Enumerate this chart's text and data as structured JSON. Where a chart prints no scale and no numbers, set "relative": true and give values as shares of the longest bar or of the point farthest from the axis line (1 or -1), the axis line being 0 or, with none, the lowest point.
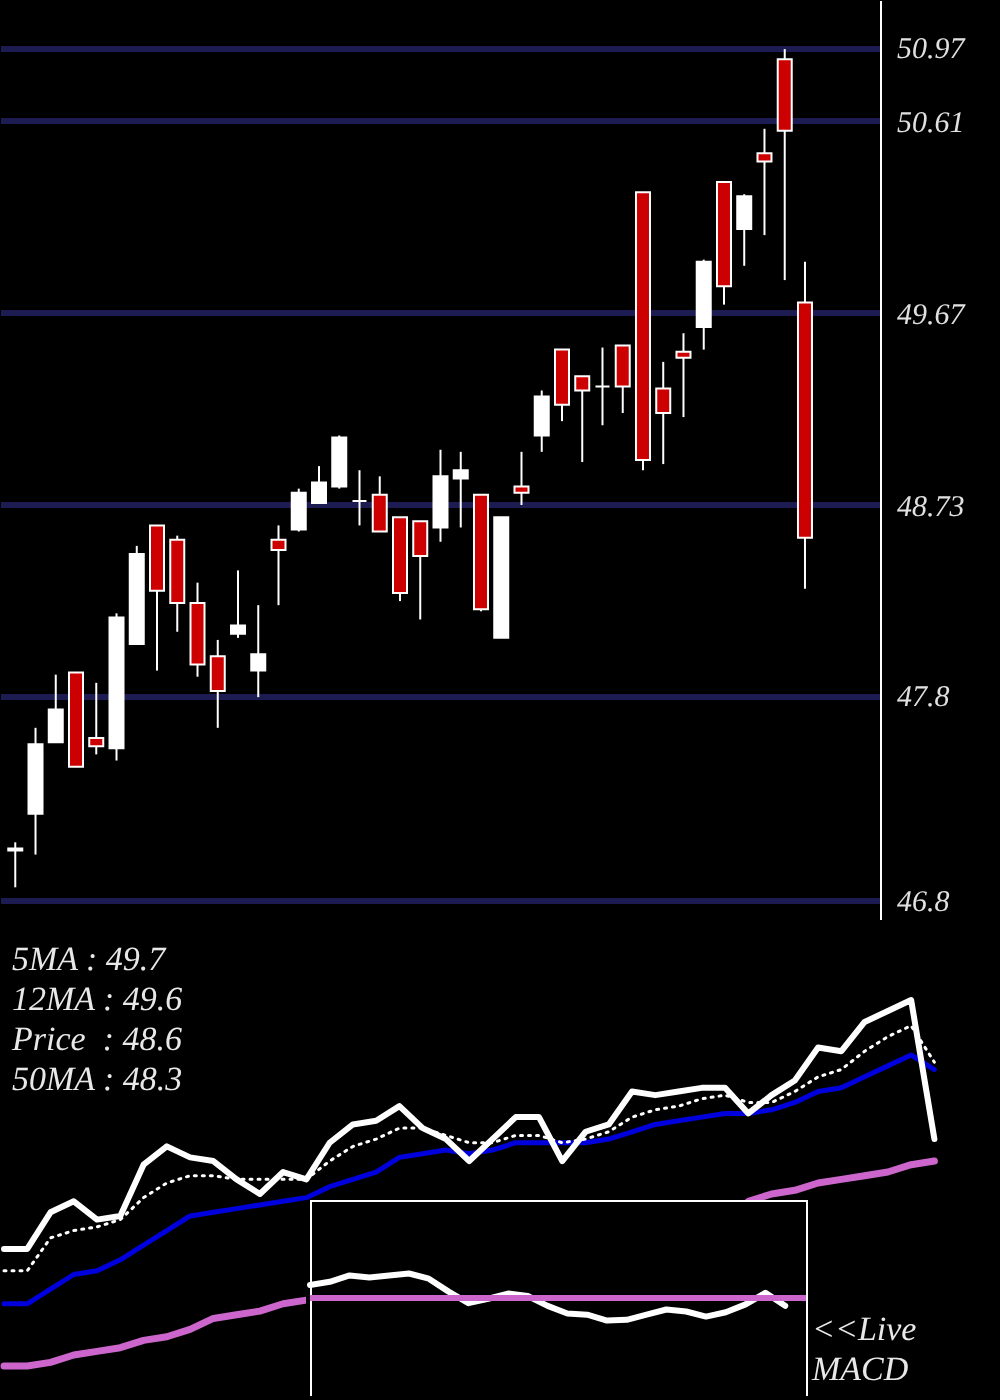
{
  "chart_data": [
    {
      "type": "candlestick",
      "categories": [
        null,
        null,
        null,
        null,
        null,
        null,
        null,
        null,
        null,
        null,
        null,
        null,
        null,
        null,
        null,
        null,
        null,
        null,
        null,
        null,
        null,
        null,
        null,
        null,
        null,
        null,
        null,
        null,
        null,
        null,
        null,
        null,
        null,
        null,
        null,
        null,
        null,
        null,
        null,
        null
      ],
      "ohlc": [
        [
          47.04,
          47.08,
          46.86,
          47.05
        ],
        [
          47.22,
          47.64,
          47.02,
          47.56
        ],
        [
          47.57,
          47.9,
          47.57,
          47.73
        ],
        [
          47.91,
          47.91,
          47.45,
          47.45
        ],
        [
          47.59,
          47.86,
          47.51,
          47.55
        ],
        [
          47.54,
          48.2,
          47.48,
          48.18
        ],
        [
          48.05,
          48.53,
          48.05,
          48.49
        ],
        [
          48.63,
          48.63,
          47.92,
          48.31
        ],
        [
          48.56,
          48.58,
          48.11,
          48.25
        ],
        [
          48.25,
          48.35,
          47.89,
          47.95
        ],
        [
          47.99,
          48.07,
          47.64,
          47.82
        ],
        [
          48.1,
          48.41,
          48.08,
          48.14
        ],
        [
          47.92,
          48.24,
          47.79,
          48.0
        ],
        [
          48.56,
          48.63,
          48.24,
          48.51
        ],
        [
          48.61,
          48.81,
          48.6,
          48.79
        ],
        [
          48.74,
          48.92,
          48.74,
          48.84
        ],
        [
          48.82,
          49.07,
          48.81,
          49.06
        ],
        [
          48.75,
          48.9,
          48.63,
          48.75
        ],
        [
          48.78,
          48.87,
          48.6,
          48.6
        ],
        [
          48.67,
          48.67,
          48.26,
          48.3
        ],
        [
          48.65,
          48.65,
          48.17,
          48.48
        ],
        [
          48.62,
          49.0,
          48.55,
          48.87
        ],
        [
          48.86,
          48.99,
          48.62,
          48.9
        ],
        [
          48.78,
          48.78,
          48.21,
          48.22
        ],
        [
          48.08,
          48.67,
          48.08,
          48.67
        ],
        [
          48.82,
          48.99,
          48.73,
          48.79
        ],
        [
          49.07,
          49.29,
          48.99,
          49.26
        ],
        [
          49.49,
          49.49,
          49.14,
          49.22
        ],
        [
          49.36,
          49.36,
          48.94,
          49.29
        ],
        [
          49.31,
          49.5,
          49.12,
          49.31
        ],
        [
          49.51,
          49.51,
          49.18,
          49.31
        ],
        [
          50.26,
          50.26,
          48.9,
          48.95
        ],
        [
          49.3,
          49.43,
          48.93,
          49.18
        ],
        [
          49.48,
          49.57,
          49.16,
          49.45
        ],
        [
          49.6,
          49.93,
          49.49,
          49.92
        ],
        [
          50.31,
          50.31,
          49.71,
          49.8
        ],
        [
          50.08,
          50.25,
          49.9,
          50.24
        ],
        [
          50.45,
          50.57,
          50.05,
          50.41
        ],
        [
          50.91,
          50.96,
          49.83,
          50.56
        ],
        [
          49.72,
          49.92,
          48.32,
          48.57
        ]
      ],
      "colors": [
        "#ffffff",
        "#ffffff",
        "#ffffff",
        "#cc0000",
        "#cc0000",
        "#ffffff",
        "#ffffff",
        "#cc0000",
        "#cc0000",
        "#cc0000",
        "#cc0000",
        "#ffffff",
        "#ffffff",
        "#cc0000",
        "#ffffff",
        "#ffffff",
        "#ffffff",
        "#ffffff",
        "#cc0000",
        "#cc0000",
        "#cc0000",
        "#ffffff",
        "#ffffff",
        "#cc0000",
        "#ffffff",
        "#cc0000",
        "#ffffff",
        "#cc0000",
        "#cc0000",
        "#ffffff",
        "#cc0000",
        "#cc0000",
        "#cc0000",
        "#cc0000",
        "#ffffff",
        "#cc0000",
        "#ffffff",
        "#cc0000",
        "#cc0000",
        "#cc0000"
      ],
      "ylim": [
        46.7,
        51.2
      ],
      "yticks": [
        46.8,
        47.8,
        48.73,
        49.67,
        50.61,
        50.97
      ],
      "grid": "y",
      "tick_labels": "y"
    },
    {
      "type": "line",
      "relative": true,
      "tick_labels": false,
      "categories": [
        null,
        null,
        null,
        null,
        null,
        null,
        null,
        null,
        null,
        null,
        null,
        null,
        null,
        null,
        null,
        null,
        null,
        null,
        null,
        null,
        null,
        null,
        null,
        null,
        null,
        null,
        null,
        null,
        null,
        null,
        null,
        null,
        null,
        null,
        null,
        null,
        null,
        null,
        null,
        null,
        null
      ],
      "series": [
        {
          "color": "#ffffff",
          "values": [
            0.32,
            0.32,
            0.42,
            0.45,
            0.4,
            0.41,
            0.55,
            0.6,
            0.57,
            0.56,
            0.51,
            0.47,
            0.53,
            0.51,
            0.61,
            0.66,
            0.67,
            0.71,
            0.65,
            0.62,
            0.56,
            0.62,
            0.68,
            0.68,
            0.56,
            0.64,
            0.66,
            0.75,
            0.74,
            0.75,
            0.76,
            0.76,
            0.69,
            0.74,
            0.78,
            0.87,
            0.86,
            0.94,
            0.97,
            1.0,
            0.62
          ]
        },
        {
          "color": "#ffffff",
          "line_style": "dotted",
          "values": [
            0.26,
            0.26,
            0.35,
            0.37,
            0.38,
            0.4,
            0.46,
            0.5,
            0.52,
            0.52,
            0.51,
            0.51,
            0.51,
            0.51,
            0.56,
            0.6,
            0.62,
            0.65,
            0.65,
            0.63,
            0.61,
            0.61,
            0.63,
            0.63,
            0.61,
            0.62,
            0.64,
            0.68,
            0.7,
            0.71,
            0.73,
            0.74,
            0.72,
            0.72,
            0.75,
            0.79,
            0.81,
            0.86,
            0.9,
            0.93,
            0.83
          ]
        },
        {
          "color": "#0000dd",
          "values": [
            0.17,
            0.17,
            0.21,
            0.25,
            0.26,
            0.29,
            0.33,
            0.37,
            0.41,
            0.42,
            0.43,
            0.44,
            0.45,
            0.46,
            0.49,
            0.51,
            0.53,
            0.57,
            0.58,
            0.59,
            0.58,
            0.59,
            0.61,
            0.61,
            0.61,
            0.61,
            0.62,
            0.64,
            0.66,
            0.67,
            0.68,
            0.69,
            0.69,
            0.7,
            0.72,
            0.75,
            0.76,
            0.79,
            0.82,
            0.85,
            0.81
          ]
        },
        {
          "color": "#cc66cc",
          "values": [
            0.0,
            0.0,
            0.01,
            0.03,
            0.04,
            0.05,
            0.07,
            0.08,
            0.1,
            0.13,
            0.14,
            0.15,
            0.17,
            0.18,
            null,
            null,
            null,
            null,
            null,
            null,
            null,
            null,
            null,
            null,
            null,
            null,
            null,
            null,
            null,
            null,
            null,
            null,
            0.45,
            0.47,
            0.48,
            0.5,
            0.51,
            0.52,
            0.53,
            0.55,
            0.56
          ]
        }
      ],
      "annotations": [
        "5MA : 49.7",
        "12MA : 49.6",
        "Price  : 48.6",
        "50MA : 48.3"
      ]
    },
    {
      "type": "line",
      "relative": true,
      "tick_labels": false,
      "categories": [
        null,
        null,
        null,
        null,
        null,
        null,
        null,
        null,
        null,
        null,
        null,
        null,
        null,
        null,
        null,
        null,
        null,
        null,
        null,
        null,
        null,
        null,
        null,
        null,
        null
      ],
      "series": [
        {
          "color": "#ffffff",
          "values": [
            0.53,
            0.66,
            0.92,
            0.84,
            0.92,
            1.0,
            0.79,
            0.26,
            -0.21,
            -0.03,
            0.18,
            0.08,
            -0.32,
            -0.63,
            -0.68,
            -0.92,
            -0.89,
            -0.68,
            -0.47,
            -0.55,
            -0.76,
            -0.58,
            -0.26,
            0.21,
            -0.32
          ]
        }
      ],
      "ref_lines": [
        {
          "axis": "y",
          "value": 0,
          "color": "#cc66cc"
        }
      ],
      "annotations": [
        "<<Live MACD"
      ]
    }
  ]
}
